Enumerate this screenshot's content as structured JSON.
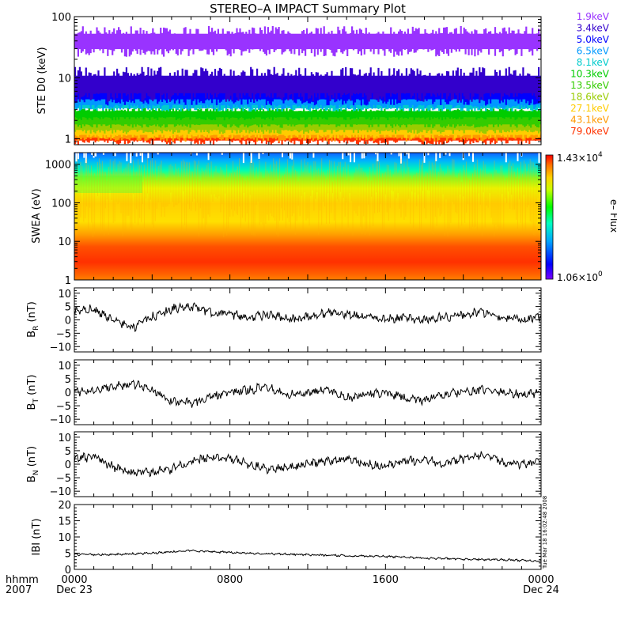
{
  "title": "STEREO–A IMPACT Summary Plot",
  "timestamp": "Tue Mar 18 16:02:48 2008",
  "time_axis": {
    "row1_label": "hhmm",
    "row2_label": "2007",
    "ticks": [
      {
        "label": "0000",
        "date": "Dec 23"
      },
      {
        "label": "0800",
        "date": ""
      },
      {
        "label": "1600",
        "date": ""
      },
      {
        "label": "0000",
        "date": "Dec 24"
      }
    ]
  },
  "colorbar": {
    "max_label": "1.43×10",
    "max_exp": "4",
    "min_label": "1.06×10",
    "min_exp": "0",
    "axis_label": "e– Flux"
  },
  "colors": {
    "foreground": "#000000",
    "background": "#ffffff"
  },
  "chart_data": [
    {
      "type": "line",
      "name": "ste-d0",
      "ylabel": "STE D0 (keV)",
      "yscale": "log",
      "ylim": [
        0.8,
        100
      ],
      "yticks": [
        "1",
        "10",
        "100"
      ],
      "xlim": [
        "2007-12-23 00:00",
        "2007-12-24 00:00"
      ],
      "series": [
        {
          "name": "1.9keV",
          "color": "#9933ff",
          "values_range": [
            22,
            70
          ]
        },
        {
          "name": "3.4keV",
          "color": "#3300cc",
          "values_range": [
            4,
            15
          ]
        },
        {
          "name": "5.0keV",
          "color": "#0000ff",
          "values_range": [
            3.5,
            9
          ]
        },
        {
          "name": "6.5keV",
          "color": "#0099ff",
          "values_range": [
            3,
            6
          ]
        },
        {
          "name": "8.1keV",
          "color": "#00cccc",
          "values_range": [
            2.8,
            4.5
          ]
        },
        {
          "name": "10.3keV",
          "color": "#00cc00",
          "values_range": [
            2.0,
            3.2
          ]
        },
        {
          "name": "13.5keV",
          "color": "#33cc00",
          "values_range": [
            1.5,
            2.6
          ]
        },
        {
          "name": "18.6keV",
          "color": "#99cc00",
          "values_range": [
            1.2,
            2.2
          ]
        },
        {
          "name": "27.1keV",
          "color": "#ffcc00",
          "values_range": [
            1.0,
            1.8
          ]
        },
        {
          "name": "43.1keV",
          "color": "#ff9900",
          "values_range": [
            0.9,
            1.6
          ]
        },
        {
          "name": "79.0keV",
          "color": "#ff3300",
          "values_range": [
            0.8,
            1.5
          ]
        }
      ]
    },
    {
      "type": "heatmap",
      "name": "swea",
      "ylabel": "SWEA (eV)",
      "yscale": "log",
      "ylim": [
        1,
        2000
      ],
      "yticks": [
        "1",
        "10",
        "100",
        "1000"
      ],
      "xlim": [
        "2007-12-23 00:00",
        "2007-12-24 00:00"
      ],
      "colorscale": "rainbow",
      "zlim": [
        1.06,
        14300
      ],
      "zlabel": "e– Flux"
    },
    {
      "type": "line",
      "name": "br",
      "ylabel": "B",
      "ylabel_sub": "R",
      "ylabel_unit": "(nT)",
      "ylim": [
        -12,
        12
      ],
      "yticks": [
        "−10",
        "−5",
        "0",
        "5",
        "10"
      ],
      "xlim": [
        "2007-12-23 00:00",
        "2007-12-24 00:00"
      ],
      "series": [
        {
          "x_hours": [
            0,
            1,
            2,
            3,
            4,
            5,
            6,
            7,
            8,
            9,
            10,
            11,
            12,
            13,
            14,
            15,
            16,
            17,
            18,
            19,
            20,
            21,
            22,
            23,
            24
          ],
          "values": [
            3,
            4,
            0,
            -3,
            1,
            4,
            5,
            3,
            2,
            1,
            2,
            0,
            1,
            3,
            2,
            1,
            0,
            1,
            0,
            1,
            2,
            3,
            1,
            0,
            1
          ]
        }
      ]
    },
    {
      "type": "line",
      "name": "bt",
      "ylabel": "B",
      "ylabel_sub": "T",
      "ylabel_unit": "(nT)",
      "ylim": [
        -12,
        12
      ],
      "yticks": [
        "−10",
        "−5",
        "0",
        "5",
        "10"
      ],
      "xlim": [
        "2007-12-23 00:00",
        "2007-12-24 00:00"
      ],
      "series": [
        {
          "x_hours": [
            0,
            1,
            2,
            3,
            4,
            5,
            6,
            7,
            8,
            9,
            10,
            11,
            12,
            13,
            14,
            15,
            16,
            17,
            18,
            19,
            20,
            21,
            22,
            23,
            24
          ],
          "values": [
            0,
            1,
            2,
            3,
            1,
            -3,
            -4,
            -2,
            0,
            1,
            2,
            -1,
            0,
            1,
            -2,
            -1,
            0,
            -2,
            -3,
            -1,
            0,
            1,
            0,
            -1,
            0
          ]
        }
      ]
    },
    {
      "type": "line",
      "name": "bn",
      "ylabel": "B",
      "ylabel_sub": "N",
      "ylabel_unit": "(nT)",
      "ylim": [
        -12,
        12
      ],
      "yticks": [
        "−10",
        "−5",
        "0",
        "5",
        "10"
      ],
      "xlim": [
        "2007-12-23 00:00",
        "2007-12-24 00:00"
      ],
      "series": [
        {
          "x_hours": [
            0,
            1,
            2,
            3,
            4,
            5,
            6,
            7,
            8,
            9,
            10,
            11,
            12,
            13,
            14,
            15,
            16,
            17,
            18,
            19,
            20,
            21,
            22,
            23,
            24
          ],
          "values": [
            2,
            3,
            -1,
            -3,
            -3,
            -2,
            1,
            3,
            2,
            0,
            -2,
            -1,
            0,
            1,
            2,
            0,
            -1,
            1,
            2,
            0,
            2,
            3,
            1,
            0,
            1
          ]
        }
      ]
    },
    {
      "type": "line",
      "name": "bmag",
      "ylabel": "IBI (nT)",
      "ylim": [
        0,
        20
      ],
      "yticks": [
        "0",
        "5",
        "10",
        "15",
        "20"
      ],
      "xlim": [
        "2007-12-23 00:00",
        "2007-12-24 00:00"
      ],
      "series": [
        {
          "x_hours": [
            0,
            2,
            4,
            6,
            8,
            10,
            12,
            14,
            16,
            18,
            20,
            22,
            24
          ],
          "values": [
            4.5,
            4.6,
            5.0,
            5.8,
            5.2,
            4.8,
            4.5,
            4.2,
            4.0,
            3.5,
            3.2,
            3.0,
            2.5
          ]
        }
      ]
    }
  ]
}
